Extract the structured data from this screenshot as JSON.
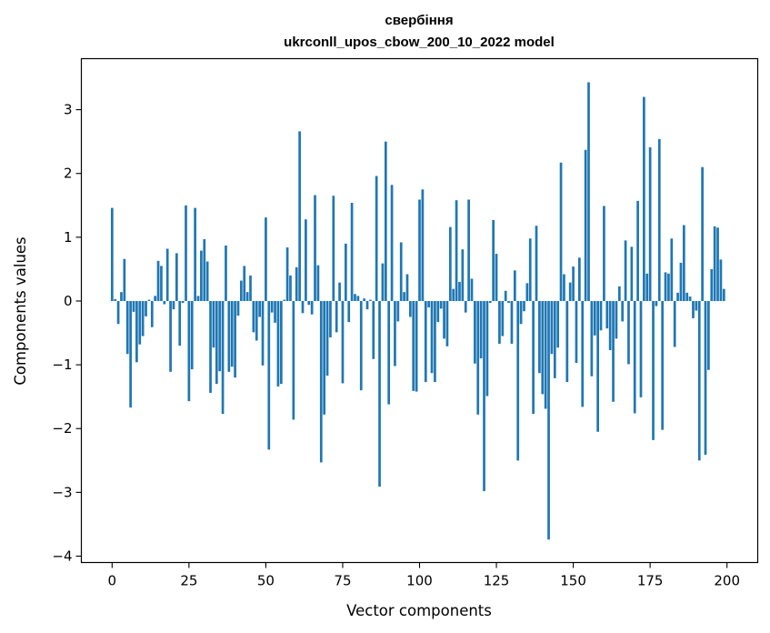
{
  "chart_data": {
    "type": "bar",
    "title": "свербіння",
    "subtitle": "ukrconll_upos_cbow_200_10_2022 model",
    "xlabel": "Vector components",
    "ylabel": "Components values",
    "xlim": [
      -10,
      210
    ],
    "ylim": [
      -4.1,
      3.8
    ],
    "xticks": [
      0,
      25,
      50,
      75,
      100,
      125,
      150,
      175,
      200
    ],
    "yticks": [
      -4,
      -3,
      -2,
      -1,
      0,
      1,
      2,
      3
    ],
    "ytick_labels": [
      "−4",
      "−3",
      "−2",
      "−1",
      "0",
      "1",
      "2",
      "3"
    ],
    "bar_color": "#1f77b4",
    "grid": false,
    "x": [
      0,
      1,
      2,
      3,
      4,
      5,
      6,
      7,
      8,
      9,
      10,
      11,
      12,
      13,
      14,
      15,
      16,
      17,
      18,
      19,
      20,
      21,
      22,
      23,
      24,
      25,
      26,
      27,
      28,
      29,
      30,
      31,
      32,
      33,
      34,
      35,
      36,
      37,
      38,
      39,
      40,
      41,
      42,
      43,
      44,
      45,
      46,
      47,
      48,
      49,
      50,
      51,
      52,
      53,
      54,
      55,
      56,
      57,
      58,
      59,
      60,
      61,
      62,
      63,
      64,
      65,
      66,
      67,
      68,
      69,
      70,
      71,
      72,
      73,
      74,
      75,
      76,
      77,
      78,
      79,
      80,
      81,
      82,
      83,
      84,
      85,
      86,
      87,
      88,
      89,
      90,
      91,
      92,
      93,
      94,
      95,
      96,
      97,
      98,
      99,
      100,
      101,
      102,
      103,
      104,
      105,
      106,
      107,
      108,
      109,
      110,
      111,
      112,
      113,
      114,
      115,
      116,
      117,
      118,
      119,
      120,
      121,
      122,
      123,
      124,
      125,
      126,
      127,
      128,
      129,
      130,
      131,
      132,
      133,
      134,
      135,
      136,
      137,
      138,
      139,
      140,
      141,
      142,
      143,
      144,
      145,
      146,
      147,
      148,
      149,
      150,
      151,
      152,
      153,
      154,
      155,
      156,
      157,
      158,
      159,
      160,
      161,
      162,
      163,
      164,
      165,
      166,
      167,
      168,
      169,
      170,
      171,
      172,
      173,
      174,
      175,
      176,
      177,
      178,
      179,
      180,
      181,
      182,
      183,
      184,
      185,
      186,
      187,
      188,
      189,
      190,
      191,
      192,
      193,
      194,
      195,
      196,
      197,
      198,
      199
    ],
    "values": [
      1.46,
      0.03,
      -0.36,
      0.14,
      0.66,
      -0.83,
      -1.67,
      -0.17,
      -0.96,
      -0.68,
      -0.55,
      -0.24,
      0.02,
      -0.41,
      0.08,
      0.63,
      0.55,
      -0.05,
      0.82,
      -1.11,
      -0.13,
      0.75,
      -0.7,
      -0.03,
      1.5,
      -1.57,
      -1.07,
      1.46,
      0.08,
      0.79,
      0.97,
      0.62,
      -1.44,
      -0.73,
      -1.3,
      -1.1,
      -1.77,
      0.87,
      -1.11,
      -1.03,
      -1.2,
      -0.23,
      0.32,
      0.55,
      0.14,
      0.4,
      -0.49,
      -0.62,
      -0.25,
      -1.01,
      1.31,
      -2.33,
      -0.18,
      -0.34,
      -1.34,
      -1.3,
      0.02,
      0.84,
      0.4,
      -1.86,
      0.53,
      2.66,
      -0.19,
      1.28,
      -0.06,
      -0.21,
      1.66,
      0.56,
      -2.53,
      -1.78,
      -1.17,
      -0.57,
      1.65,
      -0.49,
      0.29,
      -1.29,
      0.9,
      -0.33,
      1.54,
      0.11,
      0.08,
      -1.4,
      0.04,
      -0.13,
      0.02,
      -0.91,
      1.96,
      -2.91,
      0.59,
      2.5,
      -1.62,
      1.82,
      -1.02,
      -0.32,
      0.92,
      0.14,
      0.42,
      -0.25,
      -1.41,
      -1.42,
      1.59,
      1.75,
      -1.27,
      -0.1,
      -1.13,
      -1.27,
      -0.33,
      -0.12,
      -0.59,
      -0.71,
      1.16,
      0.19,
      1.58,
      0.3,
      0.81,
      -0.18,
      1.59,
      0.35,
      -0.98,
      -1.78,
      -0.9,
      -2.98,
      -1.49,
      -0.03,
      1.27,
      0.74,
      -0.67,
      -0.55,
      0.16,
      -0.03,
      -0.67,
      0.48,
      -2.5,
      -0.36,
      -0.16,
      0.28,
      0.98,
      -1.77,
      1.18,
      -1.13,
      -1.46,
      -1.69,
      -3.74,
      -0.83,
      -1.21,
      -0.73,
      2.17,
      0.42,
      -1.27,
      0.29,
      0.54,
      -0.97,
      0.68,
      -1.66,
      2.37,
      3.43,
      -1.18,
      -0.54,
      -2.05,
      -0.46,
      1.49,
      -0.43,
      -0.77,
      -1.58,
      -0.59,
      0.23,
      -0.32,
      0.95,
      -0.99,
      0.85,
      -1.76,
      1.57,
      -1.51,
      3.2,
      0.43,
      2.41,
      -2.18,
      -0.08,
      2.54,
      -2.02,
      0.45,
      0.43,
      0.98,
      -0.72,
      0.13,
      0.6,
      1.19,
      0.13,
      0.07,
      -0.27,
      -0.15,
      -2.5,
      2.1,
      -2.41,
      -1.08,
      0.5,
      1.17,
      1.15,
      0.65,
      0.19
    ]
  }
}
